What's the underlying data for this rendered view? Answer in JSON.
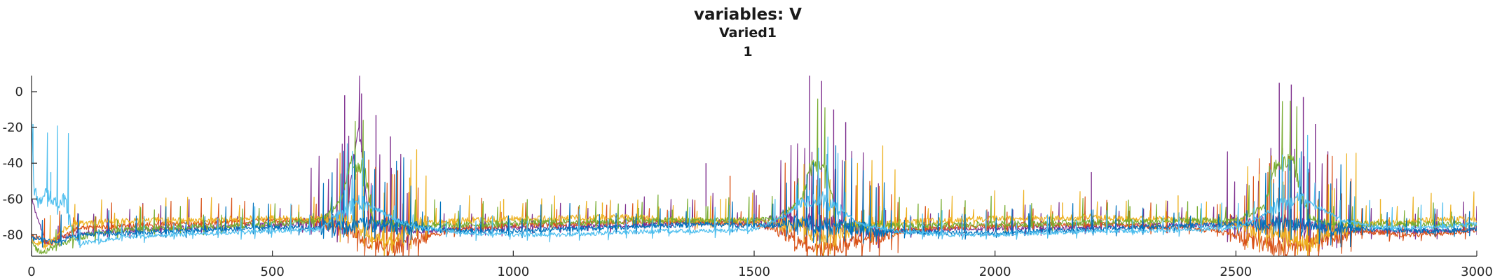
{
  "chart_data": {
    "type": "line",
    "title": "variables: V",
    "subtitle": "Varied1",
    "subtitle2": "1",
    "xlabel": "",
    "ylabel": "",
    "xlim": [
      0,
      3000
    ],
    "ylim": [
      -92,
      9
    ],
    "xticks": [
      0,
      500,
      1000,
      1500,
      2000,
      2500,
      3000
    ],
    "xtick_labels": [
      "0",
      "500",
      "1000",
      "1500",
      "2000",
      "2500",
      "3000"
    ],
    "yticks": [
      0,
      -20,
      -40,
      -60,
      -80
    ],
    "ytick_labels": [
      "0",
      "-20",
      "-40",
      "-60",
      "-80"
    ],
    "grid": false,
    "legend": "none",
    "series": [
      {
        "color": "#7e2f8e",
        "baseline": -77,
        "noise": 1.5,
        "burst_windows": [
          [
            560,
            780
          ],
          [
            1520,
            1760
          ],
          [
            2480,
            2730
          ]
        ],
        "x": [
          0,
          30,
          80,
          150,
          250,
          350,
          450,
          560,
          650,
          680,
          700,
          740,
          780,
          900,
          1000,
          1100,
          1200,
          1300,
          1400,
          1500,
          1580,
          1620,
          1660,
          1700,
          1760,
          1850,
          1950,
          2050,
          2150,
          2250,
          2350,
          2450,
          2560,
          2600,
          2630,
          2670,
          2730,
          2850,
          2950,
          3000
        ],
        "y": [
          -60,
          -85,
          -80,
          -78,
          -77,
          -76,
          -75,
          -74,
          -72,
          -20,
          -75,
          -74,
          -78,
          -77,
          -76,
          -75,
          -75,
          -74,
          -73,
          -73,
          -72,
          -72,
          -74,
          -76,
          -78,
          -77,
          -77,
          -76,
          -76,
          -75,
          -75,
          -74,
          -73,
          -73,
          -74,
          -76,
          -78,
          -78,
          -78,
          -77
        ],
        "spikes": [
          [
            650,
            -2
          ],
          [
            685,
            -1
          ],
          [
            715,
            -13
          ],
          [
            745,
            -25
          ],
          [
            1615,
            9
          ],
          [
            1640,
            6
          ],
          [
            1665,
            -10
          ],
          [
            1690,
            -17
          ],
          [
            2590,
            5
          ],
          [
            2615,
            4
          ],
          [
            2640,
            -3
          ],
          [
            2665,
            -18
          ],
          [
            1400,
            -40
          ],
          [
            1500,
            -55
          ],
          [
            2200,
            -45
          ]
        ]
      },
      {
        "color": "#d95319",
        "baseline": -74,
        "noise": 1.5,
        "burst_windows": [
          [
            600,
            820
          ],
          [
            1540,
            1800
          ],
          [
            2500,
            2760
          ]
        ],
        "x": [
          0,
          40,
          100,
          200,
          300,
          400,
          500,
          600,
          660,
          700,
          740,
          800,
          900,
          1000,
          1100,
          1200,
          1300,
          1400,
          1500,
          1560,
          1600,
          1650,
          1700,
          1800,
          1900,
          2000,
          2100,
          2200,
          2300,
          2400,
          2500,
          2560,
          2600,
          2650,
          2700,
          2760,
          2850,
          2950,
          3000
        ],
        "y": [
          -80,
          -85,
          -76,
          -75,
          -74,
          -73,
          -72,
          -72,
          -78,
          -85,
          -88,
          -82,
          -76,
          -75,
          -74,
          -73,
          -72,
          -73,
          -74,
          -78,
          -86,
          -88,
          -84,
          -78,
          -76,
          -75,
          -74,
          -74,
          -75,
          -76,
          -80,
          -86,
          -88,
          -84,
          -82,
          -78,
          -80,
          -79,
          -77
        ],
        "spikes": [
          [
            700,
            -38
          ],
          [
            760,
            -44
          ],
          [
            1450,
            -47
          ],
          [
            1640,
            -45
          ],
          [
            2570,
            -40
          ],
          [
            2610,
            -36
          ]
        ]
      },
      {
        "color": "#edb120",
        "baseline": -72,
        "noise": 1.8,
        "burst_windows": [
          [
            600,
            820
          ],
          [
            1540,
            1800
          ],
          [
            2500,
            2760
          ]
        ],
        "x": [
          0,
          30,
          80,
          150,
          250,
          350,
          450,
          550,
          650,
          700,
          750,
          800,
          900,
          1000,
          1100,
          1200,
          1300,
          1400,
          1500,
          1600,
          1650,
          1700,
          1800,
          1900,
          2000,
          2100,
          2200,
          2300,
          2400,
          2500,
          2600,
          2650,
          2700,
          2800,
          2900,
          3000
        ],
        "y": [
          -83,
          -87,
          -74,
          -73,
          -72,
          -72,
          -71,
          -71,
          -72,
          -80,
          -84,
          -74,
          -72,
          -71,
          -71,
          -70,
          -71,
          -72,
          -72,
          -76,
          -84,
          -76,
          -73,
          -72,
          -71,
          -71,
          -70,
          -71,
          -72,
          -74,
          -80,
          -86,
          -76,
          -73,
          -72,
          -71
        ],
        "spikes": [
          [
            785,
            -48
          ],
          [
            980,
            -60
          ],
          [
            1185,
            -62
          ],
          [
            1430,
            -60
          ],
          [
            1740,
            -55
          ],
          [
            2140,
            -62
          ],
          [
            2380,
            -58
          ],
          [
            2700,
            -55
          ],
          [
            2800,
            -60
          ]
        ]
      },
      {
        "color": "#77ac30",
        "baseline": -74,
        "noise": 1.8,
        "burst_windows": [
          [
            640,
            700
          ],
          [
            1600,
            1665
          ],
          [
            2580,
            2640
          ]
        ],
        "x": [
          0,
          20,
          60,
          120,
          200,
          300,
          400,
          500,
          600,
          640,
          660,
          690,
          710,
          760,
          850,
          950,
          1050,
          1150,
          1250,
          1350,
          1450,
          1550,
          1600,
          1620,
          1650,
          1670,
          1720,
          1800,
          1900,
          2000,
          2100,
          2200,
          2300,
          2400,
          2500,
          2560,
          2580,
          2620,
          2650,
          2700,
          2800,
          2900,
          3000
        ],
        "y": [
          -85,
          -90,
          -85,
          -80,
          -77,
          -76,
          -75,
          -74,
          -72,
          -62,
          -40,
          -42,
          -73,
          -74,
          -75,
          -74,
          -73,
          -73,
          -72,
          -72,
          -72,
          -71,
          -60,
          -40,
          -42,
          -74,
          -75,
          -75,
          -75,
          -74,
          -74,
          -73,
          -73,
          -72,
          -72,
          -64,
          -42,
          -40,
          -70,
          -74,
          -74,
          -74,
          -74
        ],
        "spikes": [
          [
            1260,
            -65
          ],
          [
            1330,
            -66
          ],
          [
            1400,
            -64
          ],
          [
            1760,
            -64
          ],
          [
            2280,
            -64
          ],
          [
            2420,
            -64
          ]
        ]
      },
      {
        "color": "#0072bd",
        "baseline": -78,
        "noise": 1.4,
        "burst_windows": [
          [
            600,
            800
          ],
          [
            1560,
            1780
          ],
          [
            2540,
            2750
          ]
        ],
        "x": [
          0,
          50,
          100,
          200,
          300,
          400,
          500,
          600,
          700,
          800,
          900,
          1000,
          1100,
          1200,
          1300,
          1400,
          1500,
          1600,
          1700,
          1800,
          1900,
          2000,
          2100,
          2200,
          2300,
          2400,
          2500,
          2600,
          2700,
          2800,
          2900,
          3000
        ],
        "y": [
          -82,
          -84,
          -80,
          -79,
          -78,
          -77,
          -76,
          -76,
          -74,
          -76,
          -78,
          -78,
          -77,
          -76,
          -75,
          -74,
          -75,
          -74,
          -76,
          -78,
          -79,
          -79,
          -78,
          -77,
          -76,
          -75,
          -74,
          -74,
          -76,
          -77,
          -78,
          -77
        ],
        "spikes": [
          [
            1250,
            -70
          ],
          [
            1560,
            -66
          ],
          [
            2070,
            -68
          ],
          [
            2200,
            -66
          ]
        ]
      },
      {
        "color": "#4dbeee",
        "baseline": -77,
        "noise": 1.2,
        "burst_windows": [
          [
            0,
            80
          ],
          [
            620,
            700
          ],
          [
            1590,
            1680
          ],
          [
            2570,
            2650
          ]
        ],
        "x": [
          0,
          5,
          15,
          30,
          50,
          70,
          85,
          100,
          150,
          200,
          300,
          400,
          500,
          600,
          640,
          680,
          720,
          760,
          800,
          900,
          1000,
          1100,
          1200,
          1300,
          1400,
          1500,
          1560,
          1600,
          1640,
          1680,
          1720,
          1800,
          1900,
          2000,
          2100,
          2200,
          2300,
          2400,
          2500,
          2550,
          2600,
          2640,
          2680,
          2720,
          2800,
          2900,
          3000
        ],
        "y": [
          -18,
          -55,
          -62,
          -58,
          -62,
          -60,
          -80,
          -85,
          -83,
          -81,
          -80,
          -79,
          -78,
          -77,
          -68,
          -62,
          -66,
          -72,
          -76,
          -79,
          -80,
          -80,
          -79,
          -78,
          -78,
          -77,
          -70,
          -62,
          -60,
          -66,
          -74,
          -78,
          -80,
          -80,
          -79,
          -78,
          -78,
          -77,
          -76,
          -70,
          -62,
          -60,
          -66,
          -72,
          -76,
          -76,
          -74
        ],
        "spikes": [
          [
            3,
            -18
          ],
          [
            40,
            -45
          ],
          [
            650,
            -55
          ],
          [
            1615,
            -55
          ],
          [
            2600,
            -52
          ]
        ]
      }
    ]
  }
}
